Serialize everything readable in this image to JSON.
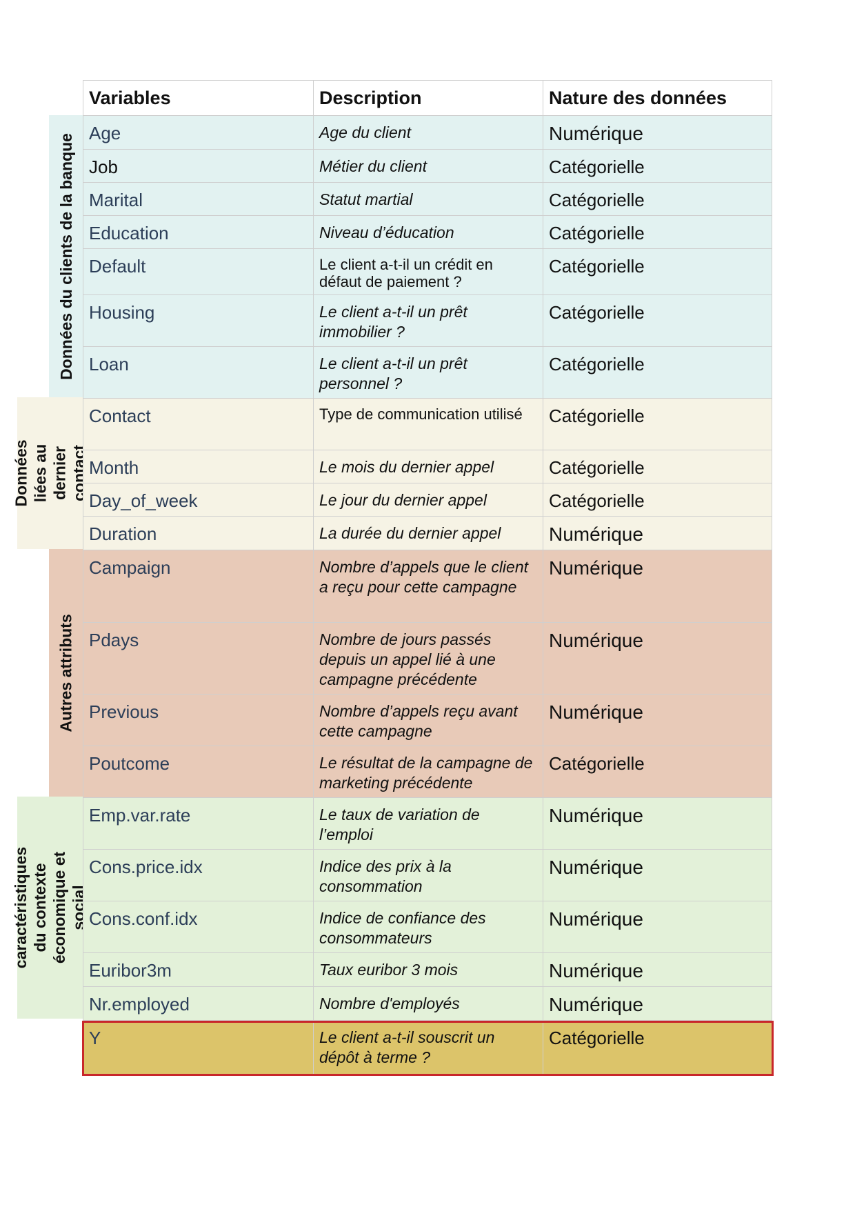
{
  "table": {
    "headers": [
      "Variables",
      "Description",
      "Nature des données"
    ],
    "groups": [
      {
        "label": "Données du clients de la banque",
        "color": "#e2f2f1"
      },
      {
        "label": "Données liées au dernier contact",
        "color": "#f6f3e5"
      },
      {
        "label": "Autres attributs",
        "color": "#e8cab8"
      },
      {
        "label": "caractéristiques du contexte économique et social",
        "color": "#e3f1d9"
      }
    ],
    "rows": [
      {
        "variable": "Age",
        "description": "Age du client",
        "nature": "Numérique"
      },
      {
        "variable": "Job",
        "description": "Métier du client",
        "nature": "Catégorielle"
      },
      {
        "variable": "Marital",
        "description": "Statut martial",
        "nature": "Catégorielle"
      },
      {
        "variable": "Education",
        "description": "Niveau d’éducation",
        "nature": "Catégorielle"
      },
      {
        "variable": "Default",
        "description": "Le client a-t-il un crédit en défaut de paiement ?",
        "nature": "Catégorielle"
      },
      {
        "variable": "Housing",
        "description": "Le client a-t-il un prêt immobilier ?",
        "nature": "Catégorielle"
      },
      {
        "variable": "Loan",
        "description": "Le client a-t-il un prêt personnel ?",
        "nature": "Catégorielle"
      },
      {
        "variable": "Contact",
        "description": "Type de communication utilisé",
        "nature": "Catégorielle"
      },
      {
        "variable": "Month",
        "description": "Le mois du dernier appel",
        "nature": "Catégorielle"
      },
      {
        "variable": "Day_of_week",
        "description": "Le jour du dernier appel",
        "nature": "Catégorielle"
      },
      {
        "variable": "Duration",
        "description": "La durée du dernier appel",
        "nature": "Numérique"
      },
      {
        "variable": "Campaign",
        "description": "Nombre d’appels que le client a reçu pour cette campagne",
        "nature": "Numérique"
      },
      {
        "variable": "Pdays",
        "description": "Nombre de jours passés depuis un appel lié à une campagne précédente",
        "nature": "Numérique"
      },
      {
        "variable": "Previous",
        "description": "Nombre d’appels reçu avant cette campagne",
        "nature": "Numérique"
      },
      {
        "variable": "Poutcome",
        "description": "Le résultat de la campagne de marketing précédente",
        "nature": "Catégorielle"
      },
      {
        "variable": "Emp.var.rate",
        "description": "Le taux de variation de l’emploi",
        "nature": "Numérique"
      },
      {
        "variable": "Cons.price.idx",
        "description": "Indice des prix à la consommation",
        "nature": "Numérique"
      },
      {
        "variable": "Cons.conf.idx",
        "description": "Indice de confiance des consommateurs",
        "nature": "Numérique"
      },
      {
        "variable": "Euribor3m",
        "description": "Taux euribor 3 mois",
        "nature": "Numérique"
      },
      {
        "variable": "Nr.employed",
        "description": "Nombre d'employés",
        "nature": "Numérique"
      },
      {
        "variable": "Y",
        "description": "Le client a-t-il souscrit un dépôt à terme ?",
        "nature": "Catégorielle"
      }
    ],
    "target_color": "#dcc46a",
    "target_border_color": "#c8272b"
  }
}
